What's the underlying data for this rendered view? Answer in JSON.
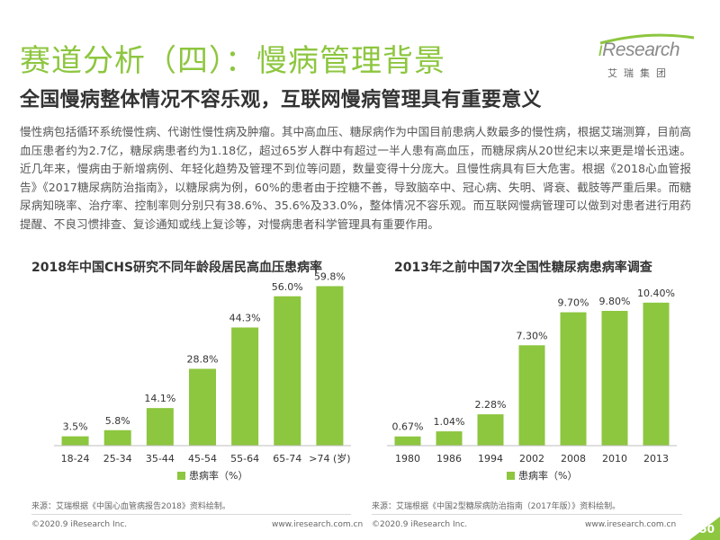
{
  "header": {
    "title": "赛道分析（四）：慢病管理背景",
    "subtitle": "全国慢病整体情况不容乐观，互联网慢病管理具有重要意义"
  },
  "logo": {
    "word_i": "i",
    "word_rest": "Research",
    "sub": "艾瑞集团",
    "color": "#8dc63f"
  },
  "body": {
    "paragraph": "慢性病包括循环系统慢性病、代谢性慢性病及肿瘤。其中高血压、糖尿病作为中国目前患病人数最多的慢性病，根据艾瑞测算，目前高血压患者约为2.7亿，糖尿病患者约为1.18亿，超过65岁人群中有超过一半人患有高血压，而糖尿病从20世纪末以来更是增长迅速。近几年来，慢病由于新增病例、年轻化趋势及管理不到位等问题，数量变得十分庞大。且慢性病具有巨大危害。根据《2018心血管报告》《2017糖尿病防治指南》，以糖尿病为例，60%的患者由于控糖不善，导致脑卒中、冠心病、失明、肾衰、截肢等严重后果。而糖尿病知晓率、治疗率、控制率则分别只有38.6%、35.6%及33.0%，整体情况不容乐观。而互联网慢病管理可以做到对患者进行用药提醒、不良习惯排查、复诊通知或线上复诊等，对慢病患者科学管理具有重要作用。"
  },
  "chart_data": [
    {
      "type": "bar",
      "title": "2018年中国CHS研究不同年龄段居民高血压患病率",
      "categories": [
        "18-24",
        "25-34",
        "35-44",
        "45-54",
        "55-64",
        "65-74",
        ">74 (岁)"
      ],
      "values": [
        3.5,
        5.8,
        14.1,
        28.8,
        44.3,
        56.0,
        59.8
      ],
      "labels": [
        "3.5%",
        "5.8%",
        "14.1%",
        "28.8%",
        "44.3%",
        "56.0%",
        "59.8%"
      ],
      "legend": "患病率（%）",
      "ylim": [
        0,
        64
      ],
      "grid": false,
      "color": "#8dc63f"
    },
    {
      "type": "bar",
      "title": "2013年之前中国7次全国性糖尿病患病率调查",
      "categories": [
        "1980",
        "1986",
        "1994",
        "2002",
        "2008",
        "2010",
        "2013"
      ],
      "values": [
        0.67,
        1.04,
        2.28,
        7.3,
        9.7,
        9.8,
        10.4
      ],
      "labels": [
        "0.67%",
        "1.04%",
        "2.28%",
        "7.30%",
        "9.70%",
        "9.80%",
        "10.40%"
      ],
      "legend": "患病率（%）",
      "ylim": [
        0,
        11.5
      ],
      "grid": false,
      "color": "#8dc63f"
    }
  ],
  "sources": {
    "left": "来源：艾瑞根据《中国心血管病报告2018》资料绘制。",
    "right": "来源：艾瑞根据《中国2型糖尿病防治指南（2017年版）》资料绘制。"
  },
  "footer": {
    "copyright": "©2020.9 iResearch Inc.",
    "site": "www.iresearch.com.cn",
    "page": "50"
  }
}
